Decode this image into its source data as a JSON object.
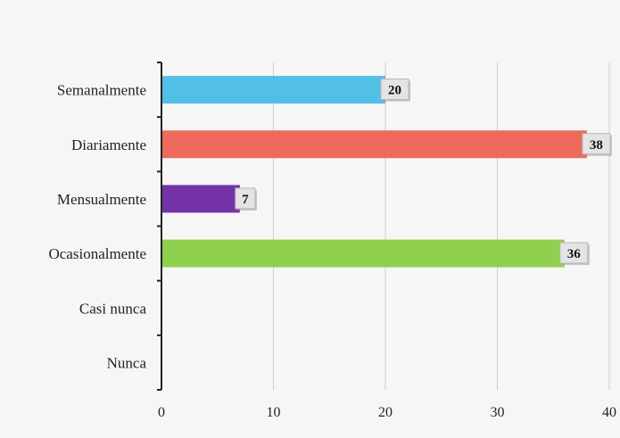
{
  "chart_data": {
    "type": "bar",
    "orientation": "horizontal",
    "title": "",
    "xlabel": "",
    "ylabel": "",
    "categories": [
      "Semanalmente",
      "Diariamente",
      "Mensualmente",
      "Ocasionalmente",
      "Casi nunca",
      "Nunca"
    ],
    "values": [
      20,
      38,
      7,
      36,
      null,
      null
    ],
    "data_labels": [
      "20",
      "38",
      "7",
      "36",
      "",
      ""
    ],
    "colors": [
      "#52bfe6",
      "#ec6b5c",
      "#7434a8",
      "#8fd14e",
      "#999999",
      "#999999"
    ],
    "xlim": [
      0,
      40
    ],
    "xticks": [
      0,
      10,
      20,
      30,
      40
    ],
    "xtick_labels": [
      "0",
      "10",
      "20",
      "30",
      "40"
    ],
    "grid": "vertical",
    "legend": "none"
  }
}
